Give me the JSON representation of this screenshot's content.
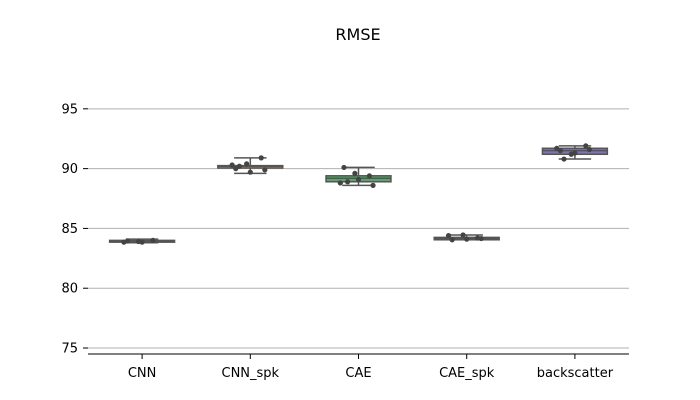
{
  "chart_data": {
    "type": "box",
    "title": "RMSE",
    "xlabel": "",
    "ylabel": "",
    "categories": [
      "CNN",
      "CNN_spk",
      "CAE",
      "CAE_spk",
      "backscatter"
    ],
    "ylim": [
      74.5,
      99.5
    ],
    "yticks": [
      75,
      80,
      85,
      90,
      95
    ],
    "grid": "horizontal",
    "boxes": [
      {
        "category": "CNN",
        "q1": 83.85,
        "median": 83.95,
        "q3": 84.0,
        "whisker_low": 83.8,
        "whisker_high": 84.1,
        "points": [
          83.85,
          83.9,
          84.0,
          83.95,
          83.85
        ],
        "color": "#4c72b0"
      },
      {
        "category": "CNN_spk",
        "q1": 90.05,
        "median": 90.2,
        "q3": 90.25,
        "whisker_low": 89.6,
        "whisker_high": 90.9,
        "points": [
          90.3,
          90.4,
          90.9,
          90.0,
          89.7,
          89.9,
          90.2
        ],
        "color": "#dd8452"
      },
      {
        "category": "CAE",
        "q1": 88.9,
        "median": 89.2,
        "q3": 89.4,
        "whisker_low": 88.6,
        "whisker_high": 90.1,
        "points": [
          88.8,
          89.6,
          89.4,
          90.1,
          89.1,
          88.6,
          88.9
        ],
        "color": "#55a868"
      },
      {
        "category": "CAE_spk",
        "q1": 84.05,
        "median": 84.15,
        "q3": 84.25,
        "whisker_low": 84.05,
        "whisker_high": 84.45,
        "points": [
          84.4,
          84.45,
          84.2,
          84.05,
          84.1,
          84.15
        ],
        "color": "#c44e52"
      },
      {
        "category": "backscatter",
        "q1": 91.2,
        "median": 91.5,
        "q3": 91.7,
        "whisker_low": 90.8,
        "whisker_high": 91.9,
        "points": [
          91.7,
          91.2,
          91.9,
          91.5,
          91.3,
          91.6,
          90.8
        ],
        "color": "#8172b3"
      }
    ],
    "outline_color": "#555555",
    "point_color": "#444444"
  }
}
